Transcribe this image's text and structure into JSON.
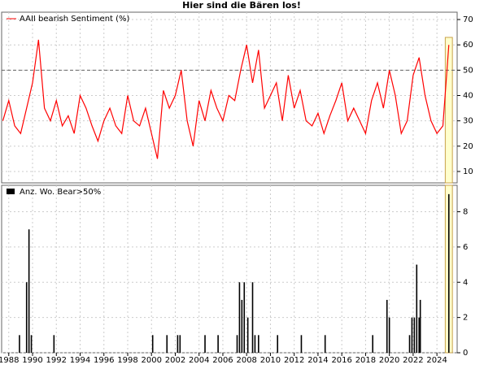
{
  "chart_data": [
    {
      "type": "line",
      "title": "Hier sind die Bären los!",
      "series": [
        {
          "name": "AAII bearish Sentiment (%)",
          "color": "#ff0000",
          "x": [
            1987.5,
            1988,
            1988.5,
            1989,
            1989.5,
            1990,
            1990.5,
            1991,
            1991.5,
            1992,
            1992.5,
            1993,
            1993.5,
            1994,
            1994.5,
            1995,
            1995.5,
            1996,
            1996.5,
            1997,
            1997.5,
            1998,
            1998.5,
            1999,
            1999.5,
            2000,
            2000.5,
            2001,
            2001.5,
            2002,
            2002.5,
            2003,
            2003.5,
            2004,
            2004.5,
            2005,
            2005.5,
            2006,
            2006.5,
            2007,
            2007.5,
            2008,
            2008.5,
            2009,
            2009.5,
            2010,
            2010.5,
            2011,
            2011.5,
            2012,
            2012.5,
            2013,
            2013.5,
            2014,
            2014.5,
            2015,
            2015.5,
            2016,
            2016.5,
            2017,
            2017.5,
            2018,
            2018.5,
            2019,
            2019.5,
            2020,
            2020.5,
            2021,
            2021.5,
            2022,
            2022.5,
            2023,
            2023.5,
            2024,
            2024.5,
            2025
          ],
          "values": [
            30,
            38,
            28,
            25,
            35,
            45,
            62,
            35,
            30,
            38,
            28,
            32,
            25,
            40,
            35,
            28,
            22,
            30,
            35,
            28,
            25,
            40,
            30,
            28,
            35,
            25,
            15,
            42,
            35,
            40,
            50,
            30,
            20,
            38,
            30,
            42,
            35,
            30,
            40,
            38,
            50,
            60,
            45,
            58,
            35,
            40,
            45,
            30,
            48,
            35,
            42,
            30,
            28,
            33,
            25,
            32,
            38,
            45,
            30,
            35,
            30,
            25,
            38,
            45,
            35,
            50,
            40,
            25,
            30,
            48,
            55,
            40,
            30,
            25,
            28,
            60
          ]
        }
      ],
      "xlim": [
        1987.4,
        2025.7
      ],
      "ylim": [
        5.5,
        72.9
      ],
      "yticks": [
        10,
        20,
        30,
        40,
        50,
        60,
        70
      ],
      "ref_line": 50,
      "highlight_x": [
        2024.7,
        2025.3
      ],
      "grid": true
    },
    {
      "type": "bar",
      "series": [
        {
          "name": "Anz. Wo. Bear>50%",
          "color": "#000000",
          "x": [
            1988.9,
            1989.5,
            1989.7,
            1989.9,
            1991.8,
            2000.1,
            2001.3,
            2002.2,
            2002.4,
            2004.5,
            2005.6,
            2007.2,
            2007.4,
            2007.6,
            2007.8,
            2008.1,
            2008.5,
            2008.7,
            2009.0,
            2010.6,
            2012.6,
            2014.6,
            2018.6,
            2019.8,
            2020.0,
            2021.7,
            2021.9,
            2022.1,
            2022.3,
            2022.5,
            2022.6,
            2025.0
          ],
          "values": [
            1,
            4,
            7,
            1,
            1,
            1,
            1,
            1,
            1,
            1,
            1,
            1,
            4,
            3,
            4,
            2,
            4,
            1,
            1,
            1,
            1,
            1,
            1,
            3,
            2,
            1,
            2,
            2,
            5,
            2,
            3,
            9
          ]
        }
      ],
      "xlim": [
        1987.4,
        2025.7
      ],
      "ylim": [
        0,
        9.5
      ],
      "yticks": [
        0,
        2,
        4,
        6,
        8
      ],
      "xticks": [
        1988,
        1990,
        1992,
        1994,
        1996,
        1998,
        2000,
        2002,
        2004,
        2006,
        2008,
        2010,
        2012,
        2014,
        2016,
        2018,
        2020,
        2022,
        2024
      ],
      "highlight_x": [
        2024.7,
        2025.3
      ],
      "grid": true
    }
  ]
}
